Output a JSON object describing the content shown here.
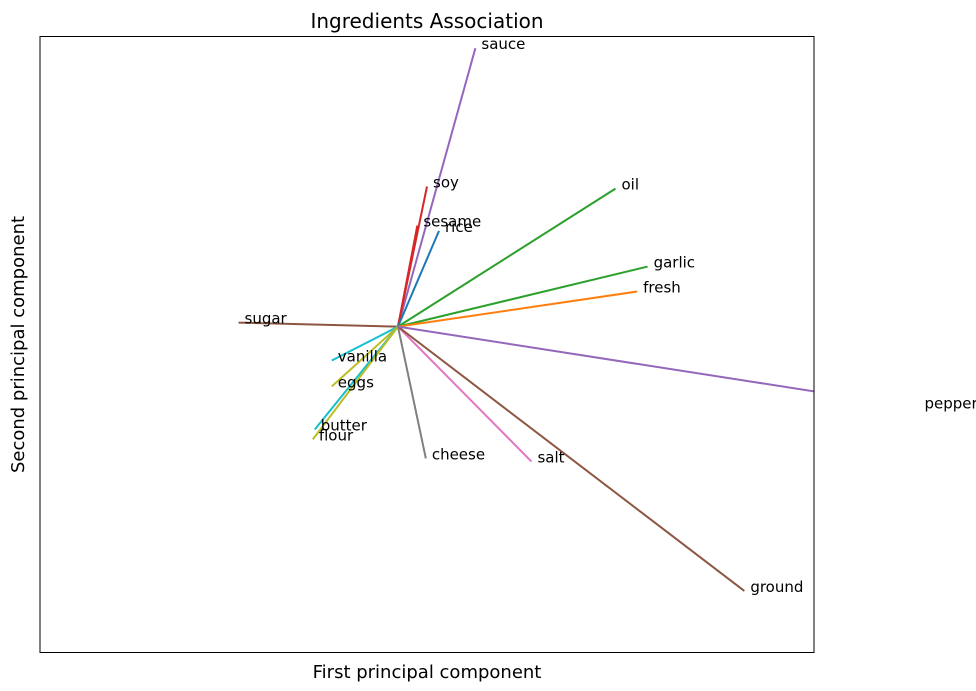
{
  "chart_data": {
    "type": "line",
    "title": "Ingredients Association",
    "xlabel": "First principal component",
    "ylabel": "Second principal component",
    "xlim": [
      -1.0,
      1.0
    ],
    "ylim": [
      -1.0,
      1.0
    ],
    "grid": false,
    "origin": [
      -0.075,
      0.058
    ],
    "series": [
      {
        "name": "sauce",
        "x": 0.125,
        "y": 0.962,
        "color": "#9467bd"
      },
      {
        "name": "soy",
        "x": 0.0,
        "y": 0.513,
        "color": "#d62728"
      },
      {
        "name": "sesame",
        "x": -0.025,
        "y": 0.386,
        "color": "#d62728"
      },
      {
        "name": "rice",
        "x": 0.031,
        "y": 0.369,
        "color": "#1f77b4"
      },
      {
        "name": "oil",
        "x": 0.487,
        "y": 0.506,
        "color": "#2ca02c"
      },
      {
        "name": "garlic",
        "x": 0.57,
        "y": 0.253,
        "color": "#2ca02c"
      },
      {
        "name": "fresh",
        "x": 0.543,
        "y": 0.172,
        "color": "#ff7f0e"
      },
      {
        "name": "sugar",
        "x": -0.487,
        "y": 0.071,
        "color": "#8c5640"
      },
      {
        "name": "vanilla",
        "x": -0.246,
        "y": -0.052,
        "color": "#17becf"
      },
      {
        "name": "eggs",
        "x": -0.246,
        "y": -0.136,
        "color": "#bcbd22"
      },
      {
        "name": "butter",
        "x": -0.29,
        "y": -0.276,
        "color": "#17becf"
      },
      {
        "name": "flour",
        "x": -0.295,
        "y": -0.308,
        "color": "#bcbd22"
      },
      {
        "name": "cheese",
        "x": -0.003,
        "y": -0.37,
        "color": "#7f7f7f"
      },
      {
        "name": "salt",
        "x": 0.27,
        "y": -0.38,
        "color": "#e377c2"
      },
      {
        "name": "ground",
        "x": 0.82,
        "y": -0.8,
        "color": "#8c5640"
      },
      {
        "name": "pepper",
        "x": 1.27,
        "y": -0.205,
        "color": "#9467bd"
      }
    ]
  }
}
